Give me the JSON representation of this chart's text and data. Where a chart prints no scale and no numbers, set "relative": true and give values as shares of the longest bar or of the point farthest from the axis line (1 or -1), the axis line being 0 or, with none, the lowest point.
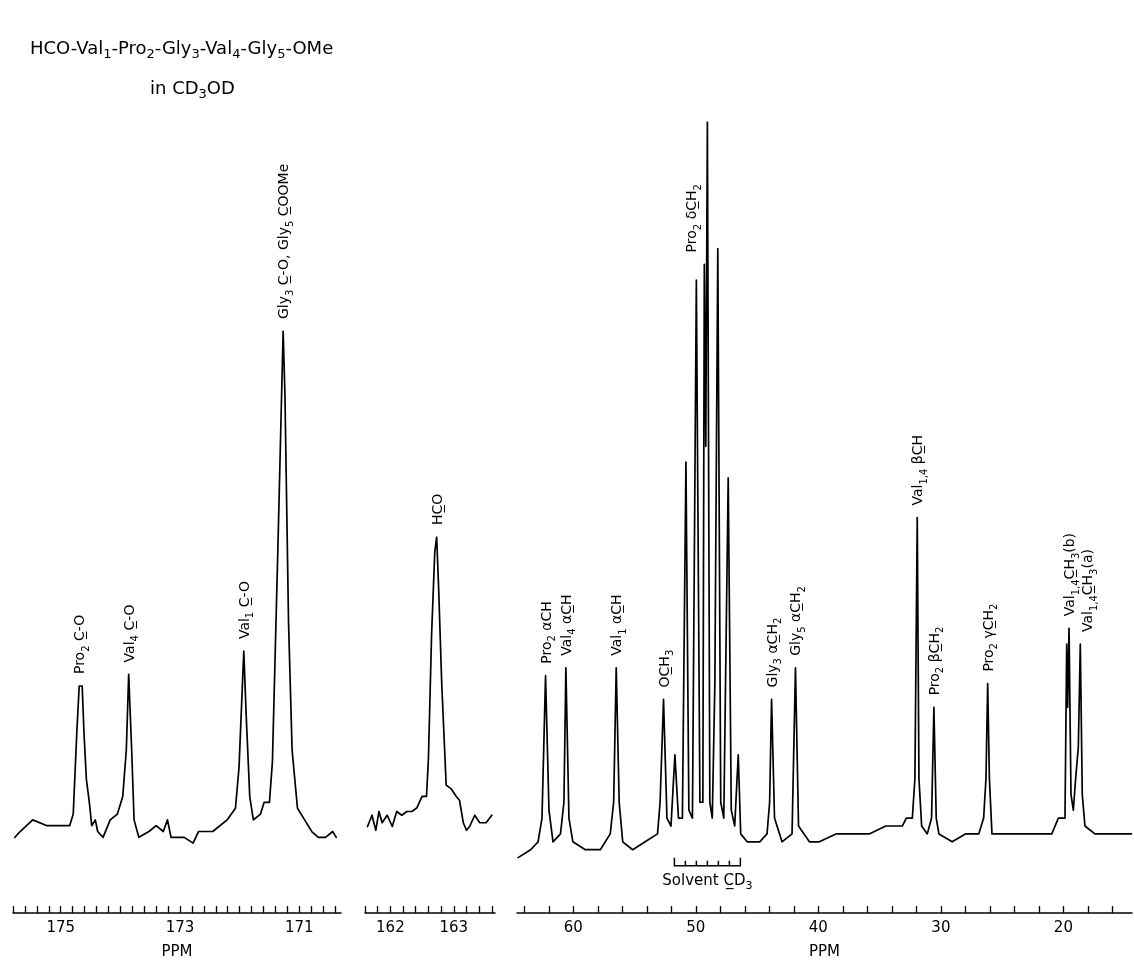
{
  "chart_data": [
    {
      "type": "line",
      "title": "HCO-Val$_{1}$-Pro$_{2}$-Gly$_{3}$-Val$_{4}$-Gly$_{5}$-OMe",
      "subtitle": "in CD$_{3}$OD",
      "xlabel": "PPM",
      "relative": true,
      "color": "#000000",
      "x": [
        175.77,
        175.68,
        175.47,
        175.23,
        174.99,
        174.85,
        174.79,
        174.73,
        174.69,
        174.64,
        174.61,
        174.57,
        174.52,
        174.48,
        174.42,
        174.38,
        174.29,
        174.17,
        174.05,
        173.96,
        173.9,
        173.86,
        173.81,
        173.77,
        173.69,
        173.52,
        173.4,
        173.28,
        173.21,
        173.15,
        172.93,
        172.78,
        172.69,
        172.45,
        172.21,
        172.07,
        172.01,
        171.93,
        171.89,
        171.83,
        171.77,
        171.65,
        171.59,
        171.5,
        171.45,
        171.36,
        171.27,
        171.24,
        171.18,
        171.12,
        171.03,
        170.91,
        170.79,
        170.68,
        170.56,
        170.44,
        170.38
      ],
      "values": [
        0.13,
        0.14,
        0.16,
        0.15,
        0.15,
        0.15,
        0.17,
        0.31,
        0.39,
        0.39,
        0.31,
        0.23,
        0.19,
        0.15,
        0.16,
        0.14,
        0.13,
        0.16,
        0.17,
        0.2,
        0.28,
        0.41,
        0.28,
        0.16,
        0.13,
        0.14,
        0.15,
        0.14,
        0.16,
        0.13,
        0.13,
        0.12,
        0.14,
        0.14,
        0.16,
        0.18,
        0.25,
        0.45,
        0.34,
        0.2,
        0.16,
        0.17,
        0.19,
        0.19,
        0.26,
        0.62,
        1,
        0.89,
        0.5,
        0.28,
        0.18,
        0.16,
        0.14,
        0.13,
        0.13,
        0.14,
        0.13
      ],
      "xlim": [
        175.8,
        170.3
      ],
      "xticks": [
        {
          "value": 175.8,
          "label": null
        },
        {
          "value": 175.6,
          "label": null
        },
        {
          "value": 175.4,
          "label": null
        },
        {
          "value": 175.2,
          "label": null
        },
        175,
        {
          "value": 174.8,
          "label": null
        },
        {
          "value": 174.6,
          "label": null
        },
        {
          "value": 174.4,
          "label": null
        },
        {
          "value": 174.2,
          "label": null
        },
        {
          "value": 174,
          "label": null
        },
        {
          "value": 173.8,
          "label": null
        },
        {
          "value": 173.6,
          "label": null
        },
        {
          "value": 173.4,
          "label": null
        },
        {
          "value": 173.2,
          "label": null
        },
        173,
        {
          "value": 172.8,
          "label": null
        },
        {
          "value": 172.6,
          "label": null
        },
        {
          "value": 172.4,
          "label": null
        },
        {
          "value": 172.2,
          "label": null
        },
        {
          "value": 172,
          "label": null
        },
        {
          "value": 171.8,
          "label": null
        },
        {
          "value": 171.6,
          "label": null
        },
        {
          "value": 171.4,
          "label": null
        },
        {
          "value": 171.2,
          "label": null
        },
        171,
        {
          "value": 170.8,
          "label": null
        },
        {
          "value": 170.6,
          "label": null
        },
        {
          "value": 170.4,
          "label": null
        }
      ],
      "annotations": [
        {
          "text": "Pro$_{2}$ C̲-O",
          "x": 174.69,
          "y": 0.39
        },
        {
          "text": "Val$_{4}$ C̲-O",
          "x": 173.86,
          "y": 0.41
        },
        {
          "text": "Val$_{1}$ C̲-O",
          "x": 171.93,
          "y": 0.45
        },
        {
          "text": "Gly$_{3}$ C̲-O, Gly$_{5}$ C̲OOMe",
          "x": 171.27,
          "y": 1
        }
      ]
    },
    {
      "type": "line",
      "relative": true,
      "color": "#000000",
      "x": [
        161.64,
        161.71,
        161.77,
        161.82,
        161.87,
        161.95,
        162.03,
        162.1,
        162.18,
        162.26,
        162.34,
        162.42,
        162.5,
        162.57,
        162.6,
        162.65,
        162.7,
        162.73,
        162.76,
        162.81,
        162.88,
        162.96,
        163.04,
        163.09,
        163.15,
        163.2,
        163.25,
        163.33,
        163.41,
        163.51,
        163.6
      ],
      "values": [
        0.23,
        0.26,
        0.22,
        0.27,
        0.24,
        0.26,
        0.23,
        0.27,
        0.26,
        0.27,
        0.27,
        0.28,
        0.31,
        0.31,
        0.41,
        0.74,
        0.96,
        1,
        0.87,
        0.61,
        0.34,
        0.33,
        0.31,
        0.3,
        0.24,
        0.22,
        0.23,
        0.26,
        0.24,
        0.24,
        0.26
      ],
      "xlim": [
        161.6,
        163.65
      ],
      "xticks": [
        {
          "value": 161.6,
          "label": null
        },
        {
          "value": 161.8,
          "label": null
        },
        162,
        {
          "value": 162.2,
          "label": null
        },
        {
          "value": 162.4,
          "label": null
        },
        {
          "value": 162.6,
          "label": null
        },
        {
          "value": 162.8,
          "label": null
        },
        163,
        {
          "value": 163.2,
          "label": null
        },
        {
          "value": 163.4,
          "label": null
        },
        {
          "value": 163.6,
          "label": null
        }
      ],
      "annotations": [
        {
          "text": "HC̲O",
          "x": 162.73,
          "y": 1
        }
      ]
    },
    {
      "type": "line",
      "xlabel": "PPM",
      "relative": true,
      "color": "#000000",
      "x": [
        64.51,
        63.49,
        62.88,
        62.56,
        62.27,
        61.99,
        61.66,
        61.05,
        60.77,
        60.61,
        60.36,
        60.04,
        59.02,
        57.8,
        56.99,
        56.71,
        56.5,
        56.26,
        55.97,
        55.16,
        54.14,
        53.13,
        52.92,
        52.64,
        52.36,
        52.03,
        51.71,
        51.42,
        51.1,
        50.81,
        50.57,
        50.28,
        49.96,
        49.67,
        49.43,
        49.31,
        49.19,
        49.06,
        48.86,
        48.66,
        48.45,
        48.21,
        47.97,
        47.72,
        47.36,
        47.11,
        46.83,
        46.54,
        46.34,
        45.81,
        44.79,
        44.19,
        43.98,
        43.82,
        43.58,
        42.97,
        42.15,
        41.87,
        41.62,
        40.73,
        39.92,
        38.56,
        37.21,
        35.85,
        34.5,
        33.14,
        32.82,
        32.33,
        32.12,
        31.93,
        31.79,
        31.57,
        31.11,
        30.76,
        30.57,
        30.38,
        30.16,
        29.08,
        28,
        26.91,
        26.51,
        26.32,
        26.18,
        26.04,
        25.83,
        24.74,
        23.12,
        20.95,
        20.41,
        19.87,
        19.73,
        19.65,
        19.54,
        19.38,
        19.19,
        19,
        18.78,
        18.62,
        18.46,
        18.24,
        17.43,
        16.07,
        14.45
      ],
      "values": [
        0.07,
        0.08,
        0.09,
        0.12,
        0.3,
        0.13,
        0.09,
        0.1,
        0.14,
        0.31,
        0.12,
        0.09,
        0.08,
        0.08,
        0.1,
        0.14,
        0.31,
        0.14,
        0.09,
        0.08,
        0.09,
        0.1,
        0.14,
        0.27,
        0.12,
        0.11,
        0.2,
        0.12,
        0.12,
        0.57,
        0.13,
        0.12,
        0.8,
        0.14,
        0.14,
        0.82,
        0.59,
        1,
        0.14,
        0.12,
        0.29,
        0.84,
        0.14,
        0.12,
        0.55,
        0.13,
        0.11,
        0.2,
        0.1,
        0.09,
        0.09,
        0.1,
        0.14,
        0.27,
        0.12,
        0.09,
        0.1,
        0.31,
        0.11,
        0.09,
        0.09,
        0.1,
        0.1,
        0.1,
        0.11,
        0.11,
        0.12,
        0.12,
        0.17,
        0.5,
        0.17,
        0.11,
        0.1,
        0.12,
        0.26,
        0.12,
        0.1,
        0.09,
        0.1,
        0.1,
        0.12,
        0.17,
        0.29,
        0.17,
        0.1,
        0.1,
        0.1,
        0.1,
        0.12,
        0.12,
        0.34,
        0.26,
        0.36,
        0.15,
        0.13,
        0.17,
        0.21,
        0.34,
        0.15,
        0.11,
        0.1,
        0.1,
        0.1
      ],
      "xlim": [
        64.6,
        14.4
      ],
      "xticks": [
        {
          "value": 64,
          "label": null
        },
        {
          "value": 62,
          "label": null
        },
        60,
        {
          "value": 58,
          "label": null
        },
        {
          "value": 56,
          "label": null
        },
        {
          "value": 54,
          "label": null
        },
        {
          "value": 52,
          "label": null
        },
        50,
        {
          "value": 48,
          "label": null
        },
        {
          "value": 46,
          "label": null
        },
        {
          "value": 44,
          "label": null
        },
        {
          "value": 42,
          "label": null
        },
        40,
        {
          "value": 38,
          "label": null
        },
        {
          "value": 36,
          "label": null
        },
        {
          "value": 34,
          "label": null
        },
        {
          "value": 32,
          "label": null
        },
        30,
        {
          "value": 28,
          "label": null
        },
        {
          "value": 26,
          "label": null
        },
        {
          "value": 24,
          "label": null
        },
        {
          "value": 22,
          "label": null
        },
        20,
        {
          "value": 18,
          "label": null
        },
        {
          "value": 16,
          "label": null
        }
      ],
      "annotations": [
        {
          "text": "Pro$_{2}$ αCH",
          "x": 62.27,
          "y": 0.3
        },
        {
          "text": "Val$_{4}$ αC̲H",
          "x": 60.61,
          "y": 0.31
        },
        {
          "text": "Val$_{1}$ αC̲H",
          "x": 56.5,
          "y": 0.31
        },
        {
          "text": "OC̲H$_{3}$",
          "x": 52.64,
          "y": 0.27
        },
        {
          "text": "Pro$_{2}$ δC̲H$_{2}$",
          "x": 49.31,
          "y": 0.82
        },
        {
          "text": "Gly$_{3}$ αC̲H$_{2}$",
          "x": 43.82,
          "y": 0.27
        },
        {
          "text": "Gly$_{5}$ αC̲H$_{2}$",
          "x": 41.87,
          "y": 0.31
        },
        {
          "text": "Val$_{1,4}$ βC̲H",
          "x": 31.93,
          "y": 0.5
        },
        {
          "text": "Pro$_{2}$ βC̲H$_{2}$",
          "x": 30.57,
          "y": 0.26
        },
        {
          "text": "Pro$_{2}$ γC̲H$_{2}$",
          "x": 26.18,
          "y": 0.29
        },
        {
          "text": "Val$_{1,4}$C̲H$_{3}$(b)",
          "x": 19.54,
          "y": 0.36
        },
        {
          "text": "Val$_{1,4}$C̲H$_{3}$(a)",
          "x": 18.62,
          "y": 0.34
        },
        {
          "text": "Solvent C̲D$_{3}$",
          "x": 49.06
        }
      ]
    }
  ]
}
